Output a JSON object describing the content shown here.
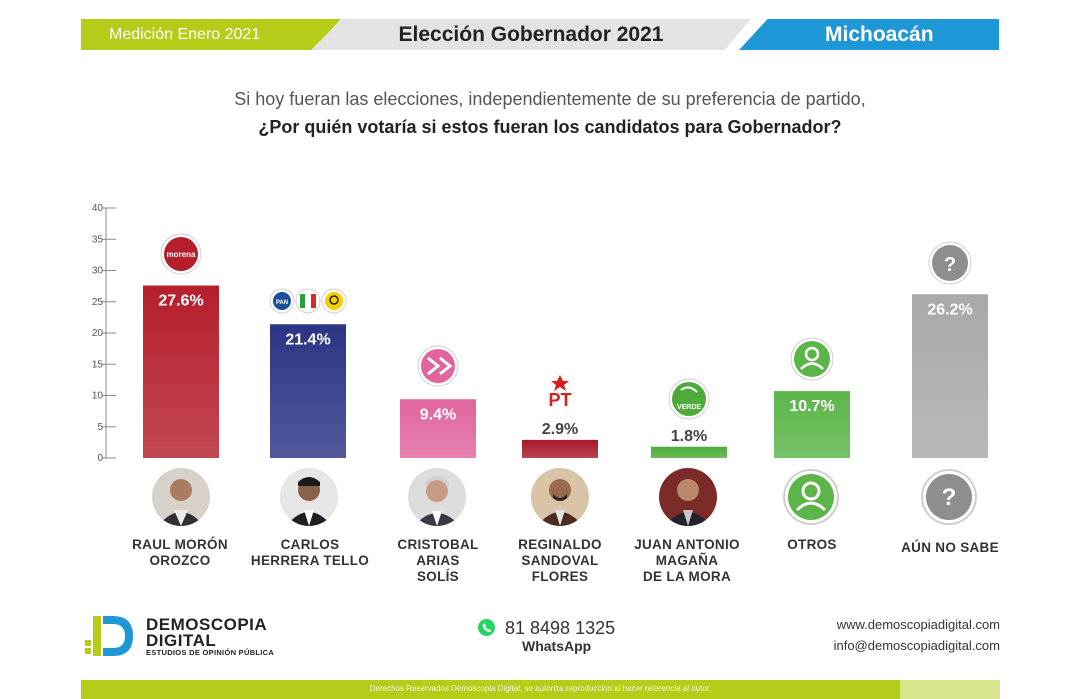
{
  "header": {
    "left_label": "Medición Enero 2021",
    "title": "Elección Gobernador 2021",
    "right_label": "Michoacán"
  },
  "question": {
    "line1": "Si hoy fueran las elecciones, independientemente de su preferencia de partido,",
    "line2": "¿Por quién votaría si estos fueran los candidatos para Gobernador?"
  },
  "chart_data": {
    "type": "bar",
    "categories": [
      "RAUL MORÓN OROZCO",
      "CARLOS HERRERA TELLO",
      "CRISTOBAL ARIAS SOLÍS",
      "REGINALDO SANDOVAL FLORES",
      "JUAN ANTONIO MAGAÑA DE LA MORA",
      "OTROS",
      "AÚN NO SABE"
    ],
    "values": [
      27.6,
      21.4,
      9.4,
      2.9,
      1.8,
      10.7,
      26.2
    ],
    "value_labels": [
      "27.6%",
      "21.4%",
      "9.4%",
      "2.9%",
      "1.8%",
      "10.7%",
      "26.2%"
    ],
    "ylim": [
      0,
      40
    ],
    "yticks": [
      0,
      5,
      10,
      15,
      20,
      25,
      30,
      35,
      40
    ],
    "colors": [
      "#b51f2c",
      "#2b3585",
      "#e0659e",
      "#a8182a",
      "#4eab3a",
      "#5bb549",
      "#a9a9ab"
    ],
    "party_labels": [
      "morena",
      "PAN · PRI · PRD",
      "MC",
      "PT",
      "VERDE",
      "",
      "?"
    ],
    "party_label_text": {
      "morena": "morena",
      "pan": "PAN",
      "pt": "PT",
      "verde": "VERDE",
      "question": "?"
    }
  },
  "candidates": [
    {
      "line1": "RAUL MORÓN",
      "line2": "OROZCO",
      "line3": ""
    },
    {
      "line1": "CARLOS",
      "line2": "HERRERA TELLO",
      "line3": ""
    },
    {
      "line1": "CRISTOBAL",
      "line2": "ARIAS",
      "line3": "SOLÍS"
    },
    {
      "line1": "REGINALDO",
      "line2": "SANDOVAL",
      "line3": "FLORES"
    },
    {
      "line1": "JUAN ANTONIO",
      "line2": "MAGAÑA",
      "line3": "DE LA MORA"
    },
    {
      "line1": "OTROS",
      "line2": "",
      "line3": ""
    },
    {
      "line1": "AÚN NO SABE",
      "line2": "",
      "line3": ""
    }
  ],
  "brand": {
    "name1": "DEMOSCOPIA",
    "name2": "DIGITAL",
    "tagline": "ESTUDIOS DE OPINIÓN PÚBLICA"
  },
  "contact": {
    "phone": "81 8498 1325",
    "whatsapp_label": "WhatsApp",
    "website": "www.demoscopiadigital.com",
    "email": "info@demoscopiadigital.com"
  },
  "footer": {
    "text": "Derechos Reservados Demoscopia Digital, se autoriza reproducción al hacer referencia al autor."
  }
}
